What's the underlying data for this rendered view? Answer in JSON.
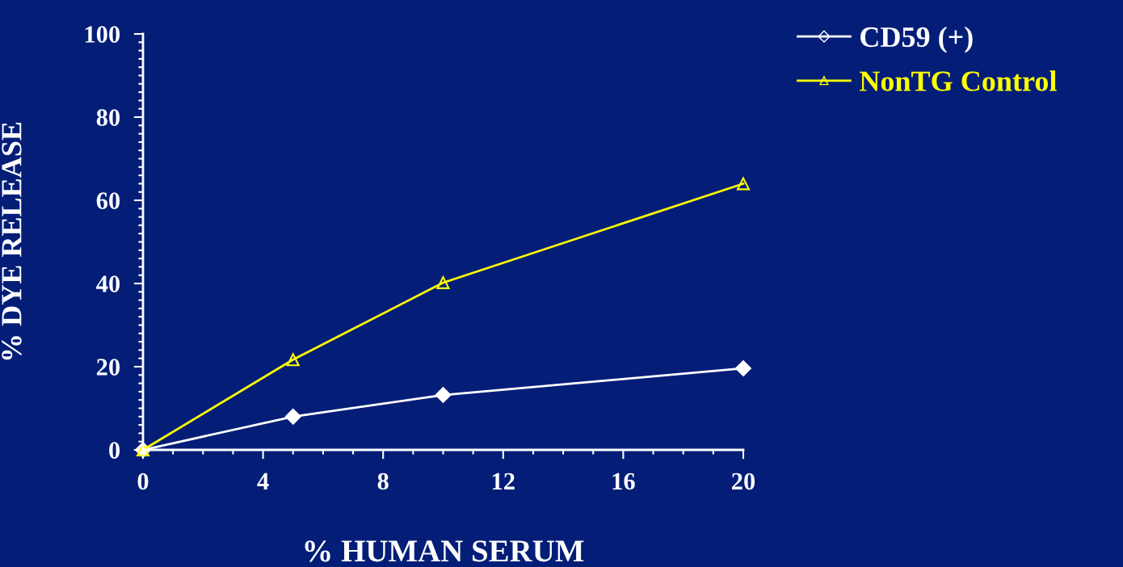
{
  "chart_data": {
    "type": "line",
    "xlabel": "% HUMAN SERUM",
    "ylabel": "% DYE RELEASE",
    "x": [
      0,
      5,
      10,
      20
    ],
    "series": [
      {
        "name": "CD59 (+)",
        "color": "#ffffff",
        "marker": "diamond",
        "values": [
          0,
          8,
          13.2,
          19.6
        ]
      },
      {
        "name": "NonTG Control",
        "color": "#ffff00",
        "marker": "triangle",
        "values": [
          0,
          21.7,
          40.2,
          64
        ]
      }
    ],
    "xlim": [
      0,
      20
    ],
    "xticks": [
      0,
      4,
      8,
      12,
      16,
      20
    ],
    "ylim": [
      0,
      100
    ],
    "yticks": [
      0,
      20,
      40,
      60,
      80,
      100
    ],
    "grid": false,
    "legend": "top right",
    "line_style": "solid"
  }
}
